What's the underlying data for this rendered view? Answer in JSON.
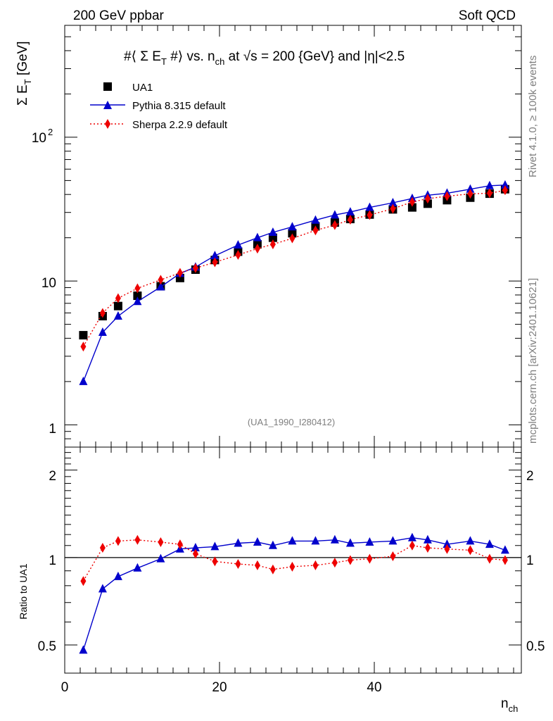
{
  "header": {
    "left": "200 GeV ppbar",
    "right": "Soft QCD"
  },
  "side_text": {
    "rivet": "Rivet 4.1.0, ≥ 100k events",
    "mcplots": "mcplots.cern.ch [arXiv:2401.10621]"
  },
  "colors": {
    "data": "#000000",
    "pythia": "#0000cc",
    "sherpa": "#ee0000",
    "watermark": "#7f7f7f"
  },
  "chart_data": [
    {
      "type": "line",
      "title": "#⟨ Σ E_T #⟩ vs. n_ch at √s = 200 {GeV} and |η|<2.5",
      "title_parts": {
        "p1": "#⟨ Σ E",
        "s1": "T",
        "p2": " #⟩ vs. n",
        "s2": "ch",
        "p3": " at √s = 200 {GeV} and |η|<2.5"
      },
      "ylabel": "Σ E_T [GeV]",
      "ylabel_parts": {
        "main": "Σ E",
        "sub": "T",
        "unit": " [GeV]"
      },
      "yscale": "log",
      "ylim": [
        0.7,
        600
      ],
      "xlim": [
        0,
        59
      ],
      "y_tick_labels": [
        {
          "value": 1,
          "label": "1"
        },
        {
          "value": 10,
          "label": "10"
        },
        {
          "value": 100,
          "label": "10",
          "sup": "2"
        }
      ],
      "analysis_label": "(UA1_1990_I280412)",
      "legend_position": "top-left",
      "x": [
        2.4,
        4.9,
        6.9,
        9.4,
        12.4,
        14.9,
        16.9,
        19.4,
        22.4,
        24.9,
        26.9,
        29.4,
        32.4,
        34.9,
        36.9,
        39.4,
        42.4,
        44.9,
        46.9,
        49.4,
        52.4,
        54.9,
        56.9
      ],
      "series": [
        {
          "name": "UA1",
          "marker": "square",
          "values": [
            4.2,
            5.7,
            6.7,
            7.9,
            9.2,
            10.5,
            12.0,
            14.0,
            16.0,
            18.0,
            20.0,
            21.5,
            24.0,
            25.5,
            27.0,
            29.0,
            31.5,
            32.5,
            34.5,
            36.5,
            38.0,
            40.5,
            43.5
          ]
        },
        {
          "name": "Pythia 8.315 default",
          "marker": "triangle",
          "values": [
            2.0,
            4.4,
            5.7,
            7.2,
            9.1,
            11.3,
            12.5,
            15.0,
            17.8,
            20.0,
            21.8,
            23.8,
            26.5,
            28.8,
            30.2,
            32.5,
            35.0,
            37.5,
            39.5,
            40.8,
            43.5,
            46.0,
            46.5
          ]
        },
        {
          "name": "Sherpa 2.2.9 default",
          "marker": "diamond",
          "values": [
            3.5,
            6.0,
            7.6,
            8.9,
            10.2,
            11.4,
            12.3,
            13.5,
            15.2,
            16.8,
            18.0,
            19.8,
            22.5,
            24.5,
            26.7,
            28.8,
            31.8,
            35.5,
            37.4,
            38.9,
            40.4,
            40.8,
            42.8
          ]
        }
      ]
    },
    {
      "type": "line",
      "title": "",
      "ylabel": "Ratio to UA1",
      "xlabel": "n_ch",
      "xlabel_parts": {
        "main": "n",
        "sub": "ch"
      },
      "yscale": "log",
      "ylim": [
        0.4,
        2.4
      ],
      "xlim": [
        0,
        59
      ],
      "reference_line": 1,
      "x_tick_labels": [
        {
          "value": 0,
          "label": "0"
        },
        {
          "value": 20,
          "label": "20"
        },
        {
          "value": 40,
          "label": "40"
        }
      ],
      "y_tick_labels": [
        {
          "value": 0.5,
          "label": "0.5"
        },
        {
          "value": 1,
          "label": "1"
        },
        {
          "value": 2,
          "label": "2"
        }
      ],
      "x": [
        2.4,
        4.9,
        6.9,
        9.4,
        12.4,
        14.9,
        16.9,
        19.4,
        22.4,
        24.9,
        26.9,
        29.4,
        32.4,
        34.9,
        36.9,
        39.4,
        42.4,
        44.9,
        46.9,
        49.4,
        52.4,
        54.9,
        56.9
      ],
      "series": [
        {
          "name": "Pythia 8.315 default",
          "marker": "triangle",
          "values": [
            0.48,
            0.78,
            0.86,
            0.92,
            0.99,
            1.07,
            1.08,
            1.09,
            1.12,
            1.13,
            1.1,
            1.14,
            1.14,
            1.15,
            1.12,
            1.13,
            1.14,
            1.17,
            1.15,
            1.11,
            1.14,
            1.11,
            1.06
          ]
        },
        {
          "name": "Sherpa 2.2.9 default",
          "marker": "diamond",
          "values": [
            0.83,
            1.08,
            1.14,
            1.15,
            1.13,
            1.11,
            1.03,
            0.97,
            0.95,
            0.94,
            0.91,
            0.93,
            0.94,
            0.96,
            0.98,
            0.99,
            1.01,
            1.1,
            1.08,
            1.07,
            1.06,
            0.99,
            0.98
          ]
        }
      ]
    }
  ]
}
